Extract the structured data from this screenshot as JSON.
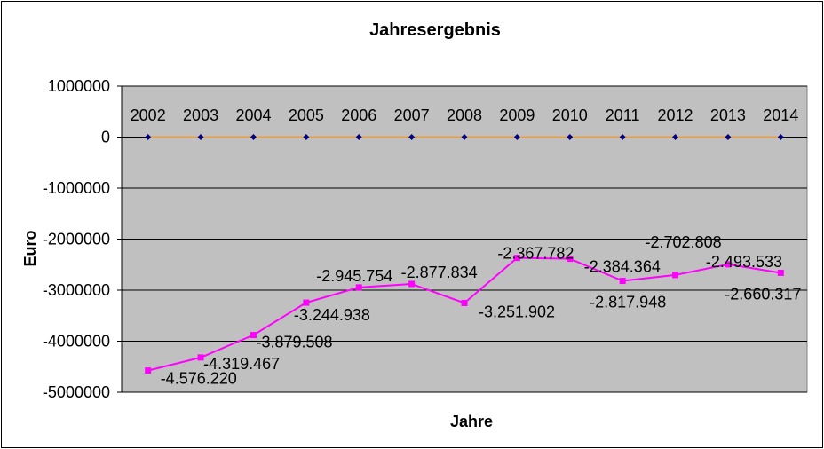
{
  "chart_data": {
    "type": "line",
    "title": "Jahresergebnis",
    "xlabel": "Jahre",
    "ylabel": "Euro",
    "categories": [
      "2002",
      "2003",
      "2004",
      "2005",
      "2006",
      "2007",
      "2008",
      "2009",
      "2010",
      "2011",
      "2012",
      "2013",
      "2014"
    ],
    "ylim": [
      -5000000,
      1000000
    ],
    "yticks": [
      1000000,
      0,
      -1000000,
      -2000000,
      -3000000,
      -4000000,
      -5000000
    ],
    "ytick_labels": [
      "1000000",
      "0",
      "-1000000",
      "-2000000",
      "-3000000",
      "-4000000",
      "-5000000"
    ],
    "grid": true,
    "legend": "none",
    "series": [
      {
        "color": "#E8A040",
        "marker_color": "#000080",
        "values": [
          0,
          0,
          0,
          0,
          0,
          0,
          0,
          0,
          0,
          0,
          0,
          0,
          0
        ]
      },
      {
        "color": "#FF00FF",
        "values": [
          -4576220,
          -4319467,
          -3879508,
          -3244938,
          -2945754,
          -2877834,
          -3251902,
          -2367782,
          -2384364,
          -2817948,
          -2702808,
          -2493533,
          -2660317
        ],
        "labels": [
          "-4.576.220",
          "-4.319.467",
          "-3.879.508",
          "-3.244.938",
          "-2.945.754",
          "-2.877.834",
          "-3.251.902",
          "-2.367.782",
          "-2.384.364",
          "-2.817.948",
          "-2.702.808",
          "-2.493.533",
          "-2.660.317"
        ]
      }
    ],
    "plot_background": "#C0C0C0"
  }
}
